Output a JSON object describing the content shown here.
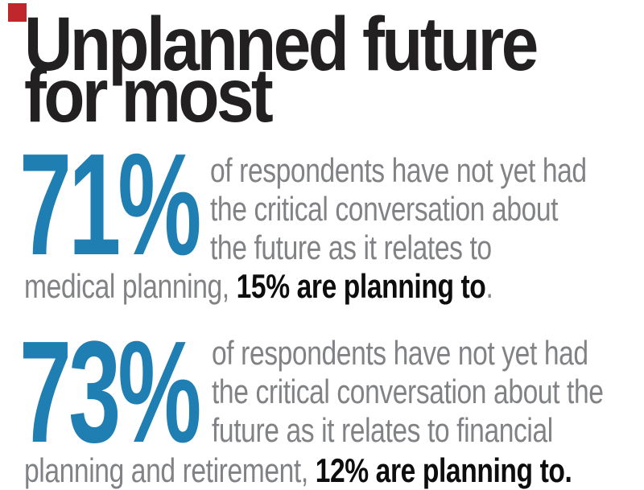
{
  "page": {
    "background": "#ffffff"
  },
  "brand": {
    "mark_color": "#c0272d"
  },
  "headline": {
    "line1": "Unplanned future",
    "line2": "for most",
    "color": "#232021"
  },
  "colors": {
    "accent_blue": "#1f7fb2",
    "text_gray": "#808285",
    "text_black": "#0d0d0d"
  },
  "stats": [
    {
      "value": "71%",
      "lines": [
        "of respondents have not yet had",
        "the critical conversation about",
        "the future as it relates to"
      ],
      "tail_regular": "medical planning, ",
      "tail_bold": "15% are planning to",
      "tail_end": "."
    },
    {
      "value": "73%",
      "lines": [
        "of respondents have not yet had",
        "the critical conversation about the",
        "future as it relates to financial"
      ],
      "tail_regular": "planning and retirement, ",
      "tail_bold": "12% are planning to.",
      "tail_end": ""
    }
  ],
  "chart_data": {
    "type": "table",
    "title": "Unplanned future for most",
    "columns": [
      "stat_pct",
      "topic",
      "planning_to_pct"
    ],
    "rows": [
      {
        "stat_pct": 71,
        "topic": "have not yet had the critical conversation about the future as it relates to medical planning",
        "planning_to_pct": 15
      },
      {
        "stat_pct": 73,
        "topic": "have not yet had the critical conversation about the future as it relates to financial planning and retirement",
        "planning_to_pct": 12
      }
    ]
  }
}
